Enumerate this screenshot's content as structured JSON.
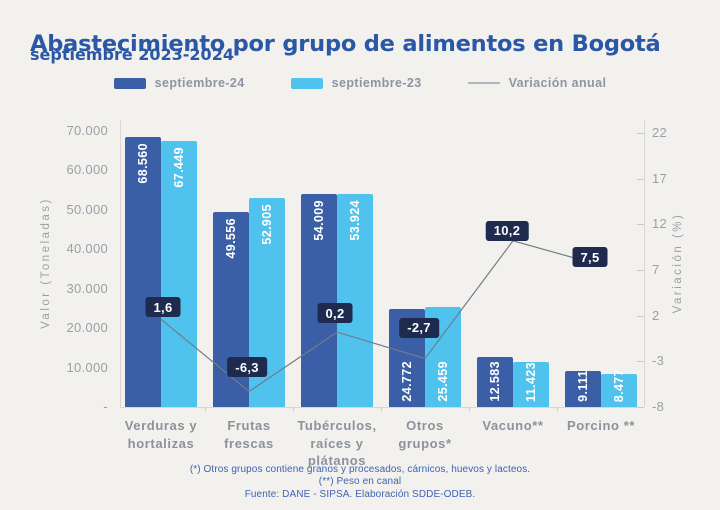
{
  "title": "Abastecimiento por grupo de alimentos en Bogotá",
  "subtitle": "septiembre 2023-2024",
  "legend": [
    {
      "label": "septiembre-24",
      "type": "rect",
      "color": "#3a5fa6"
    },
    {
      "label": "septiembre-23",
      "type": "rect",
      "color": "#4fc3ee"
    },
    {
      "label": "Variación anual",
      "type": "line",
      "color": "#b0b4bc"
    }
  ],
  "chart_data": {
    "type": "bar+line",
    "categories": [
      "Verduras y\nhortalizas",
      "Frutas\nfrescas",
      "Tubérculos,\nraíces y\nplátanos",
      "Otros\ngrupos*",
      "Vacuno**",
      "Porcino **"
    ],
    "series": [
      {
        "name": "septiembre-24",
        "type": "bar",
        "axis": "left",
        "color": "#3a5fa6",
        "values": [
          68560,
          49556,
          54009,
          24772,
          12583,
          9111
        ],
        "labels": [
          "68.560",
          "49.556",
          "54.009",
          "24.772",
          "12.583",
          "9.111"
        ]
      },
      {
        "name": "septiembre-23",
        "type": "bar",
        "axis": "left",
        "color": "#4fc3ee",
        "values": [
          67449,
          52905,
          53924,
          25459,
          11423,
          8477
        ],
        "labels": [
          "67.449",
          "52.905",
          "53.924",
          "25.459",
          "11.423",
          "8.477"
        ]
      },
      {
        "name": "Variación anual",
        "type": "line",
        "axis": "right",
        "color": "#737a8c",
        "label_box_color": "#1e2b4e",
        "values": [
          1.6,
          -6.3,
          0.2,
          -2.7,
          10.2,
          7.5
        ],
        "labels": [
          "1,6",
          "-6,3",
          "0,2",
          "-2,7",
          "10,2",
          "7,5"
        ]
      }
    ],
    "left_axis": {
      "title": "Valor (Toneladas)",
      "min": 0,
      "max": 70000,
      "ticks": [
        {
          "label": "70.000",
          "value": 70000
        },
        {
          "label": "60.000",
          "value": 60000
        },
        {
          "label": "50.000",
          "value": 50000
        },
        {
          "label": "40.000",
          "value": 40000
        },
        {
          "label": "30.000",
          "value": 30000
        },
        {
          "label": "20.000",
          "value": 20000
        },
        {
          "label": "10.000",
          "value": 10000
        },
        {
          "label": "-",
          "value": 0
        }
      ]
    },
    "right_axis": {
      "title": "Variación (%)",
      "min": -8,
      "max": 22,
      "ticks": [
        {
          "label": "22",
          "value": 22
        },
        {
          "label": "17",
          "value": 17
        },
        {
          "label": "12",
          "value": 12
        },
        {
          "label": "7",
          "value": 7
        },
        {
          "label": "2",
          "value": 2
        },
        {
          "label": "-3",
          "value": -3
        },
        {
          "label": "-8",
          "value": -8
        }
      ]
    },
    "grid": false,
    "legend_position": "top"
  },
  "footnotes": [
    "(*) Otros grupos contiene granos y procesados, cárnicos, huevos y lacteos.",
    "(**) Peso en canal",
    "Fuente: DANE - SIPSA. Elaboración SDDE-ODEB."
  ]
}
